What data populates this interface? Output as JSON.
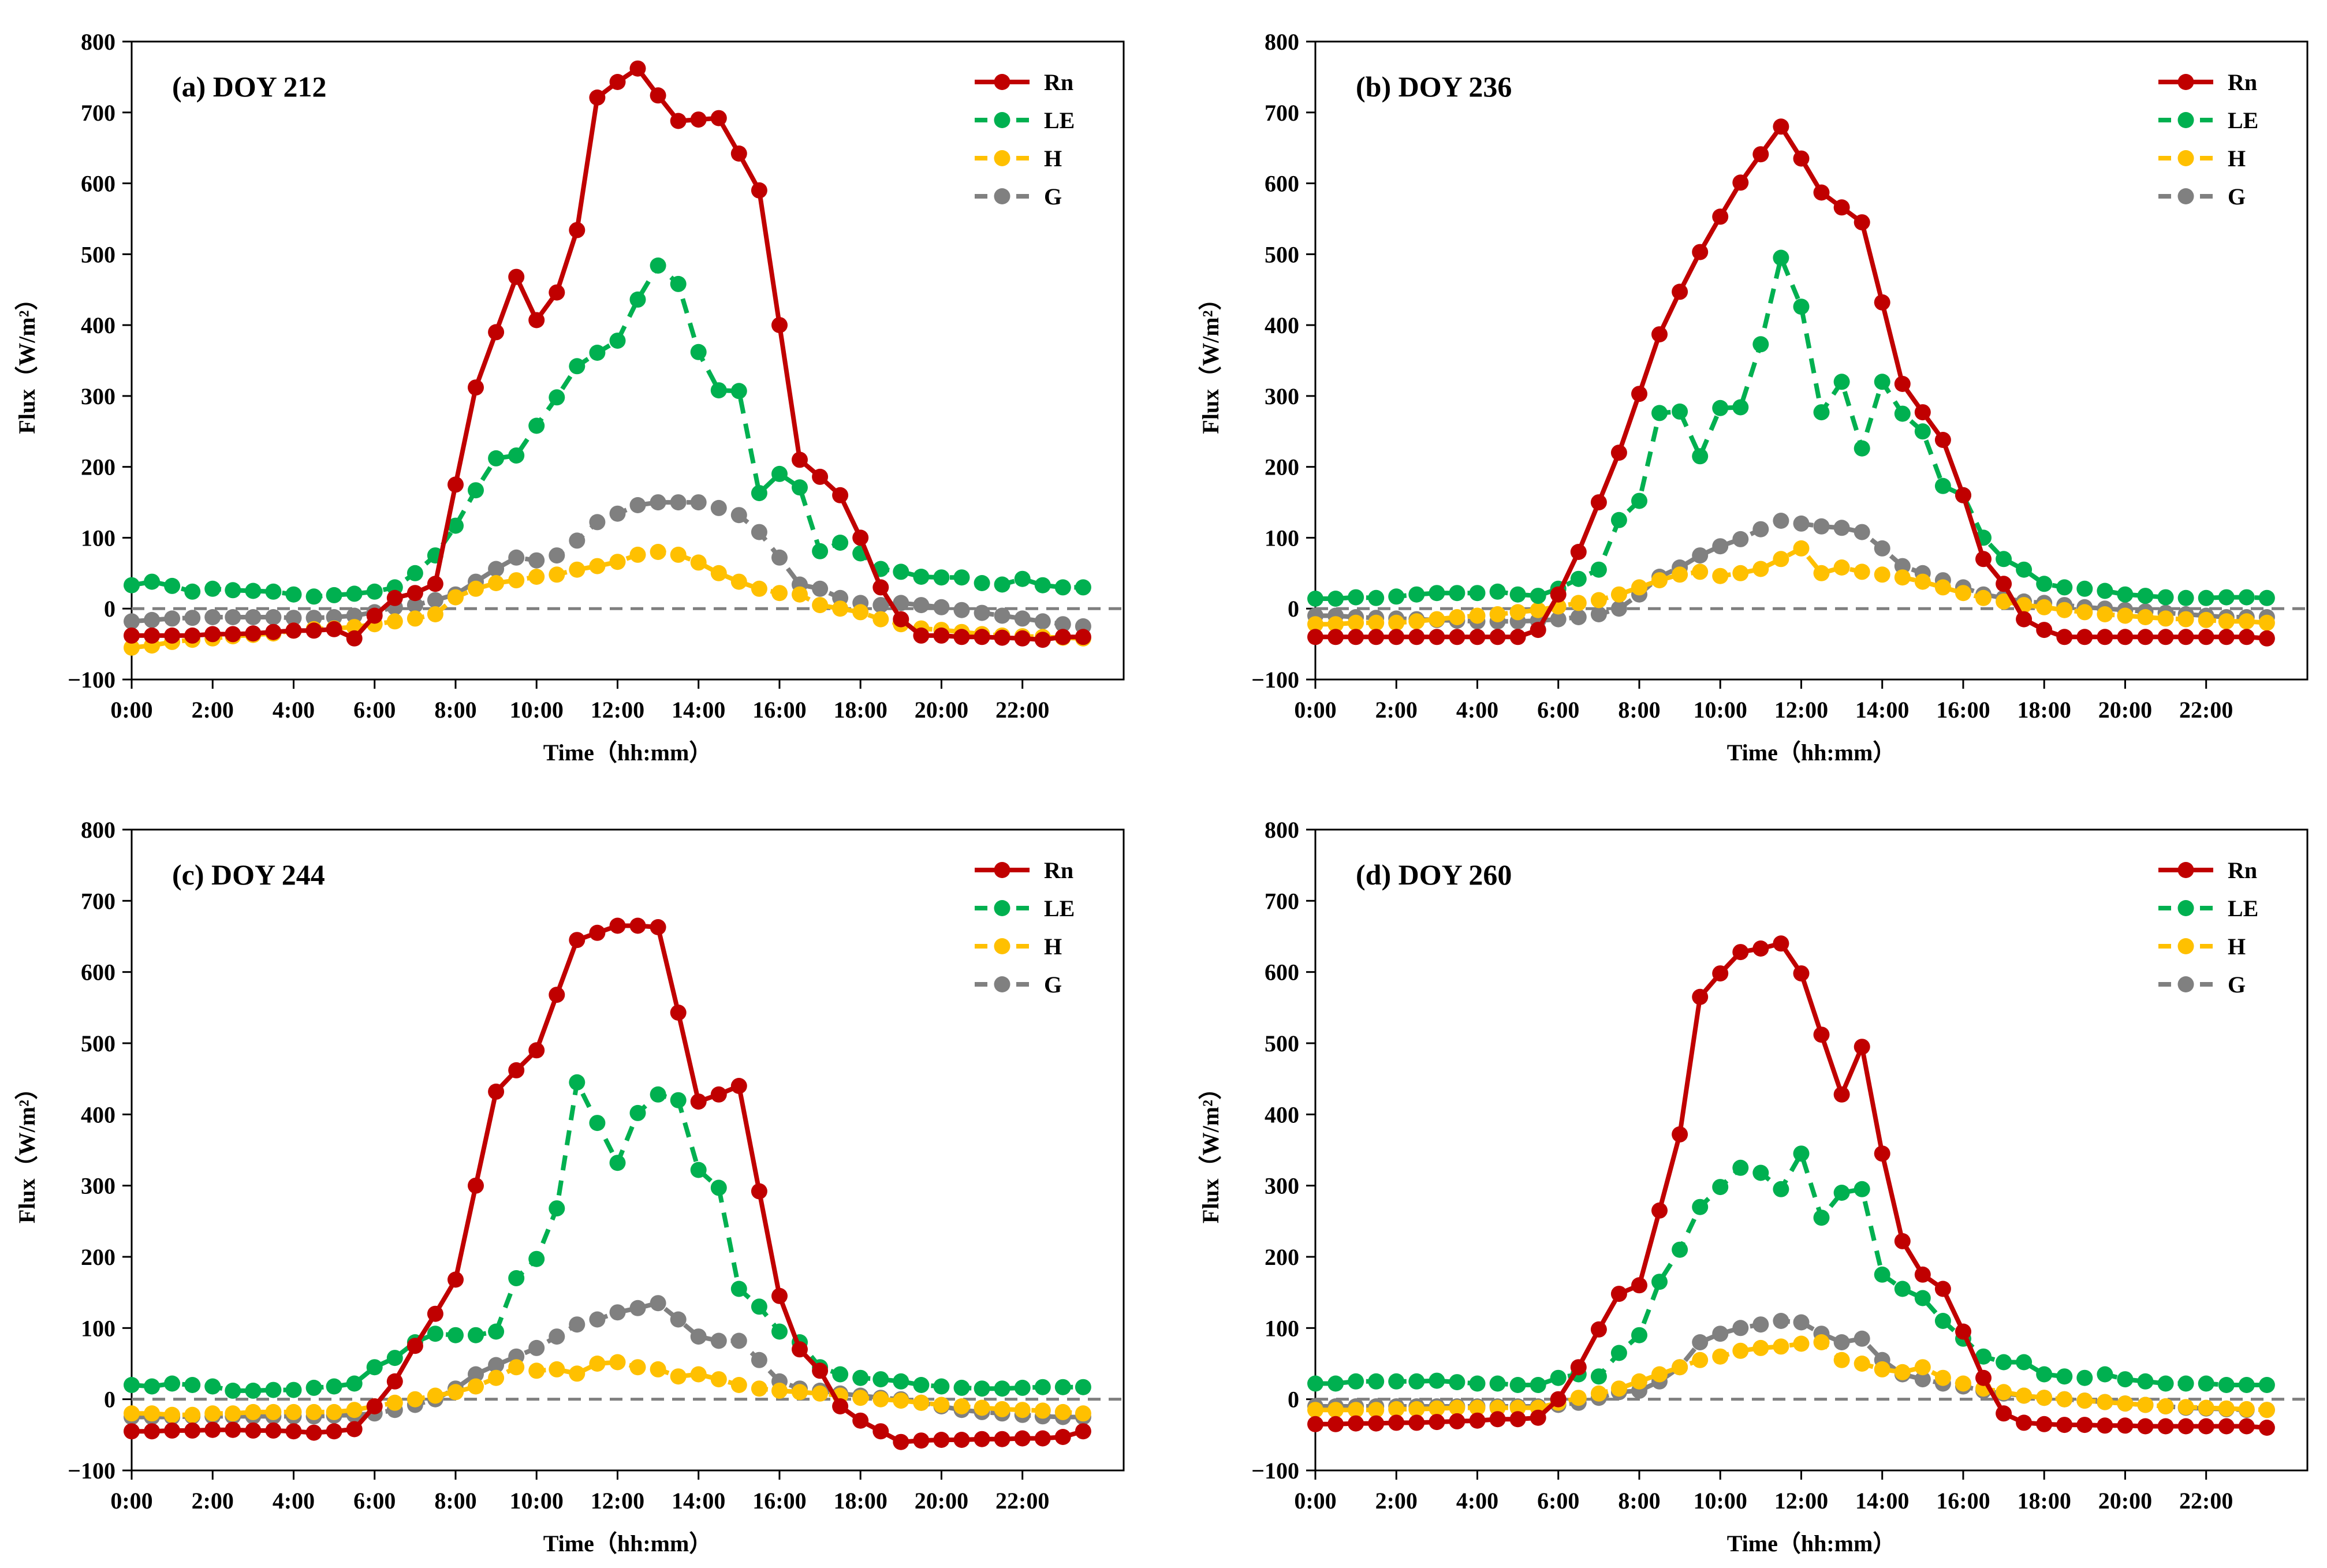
{
  "colors": {
    "Rn": "#c00000",
    "LE": "#00b050",
    "H": "#ffc000",
    "G": "#808080",
    "zero_line": "#7f7f7f",
    "axes": "#000000"
  },
  "chart_data": [
    {
      "type": "line",
      "title": "(a) DOY 212",
      "xlabel": "Time（hh:mm）",
      "ylabel": "Flux（W/m²）",
      "ylim": [
        -100,
        800
      ],
      "yticks": [
        "−100",
        "0",
        "100",
        "200",
        "300",
        "400",
        "500",
        "600",
        "700",
        "800"
      ],
      "xticks": [
        "0:00",
        "2:00",
        "4:00",
        "6:00",
        "8:00",
        "10:00",
        "12:00",
        "14:00",
        "16:00",
        "18:00",
        "20:00",
        "22:00"
      ],
      "x_hours": [
        0,
        0.5,
        1,
        1.5,
        2,
        2.5,
        3,
        3.5,
        4,
        4.5,
        5,
        5.5,
        6,
        6.5,
        7,
        7.5,
        8,
        8.5,
        9,
        9.5,
        10,
        10.5,
        11,
        11.5,
        12,
        12.5,
        13,
        13.5,
        14,
        14.5,
        15,
        15.5,
        16,
        16.5,
        17,
        17.5,
        18,
        18.5,
        19,
        19.5,
        20,
        20.5,
        21,
        21.5,
        22,
        22.5,
        23,
        23.5
      ],
      "legend": [
        "Rn",
        "LE",
        "H",
        "G"
      ],
      "series": [
        {
          "name": "Rn",
          "values": [
            -38,
            -38,
            -38,
            -38,
            -36,
            -36,
            -35,
            -33,
            -31,
            -31,
            -29,
            -42,
            -10,
            15,
            22,
            35,
            175,
            312,
            390,
            468,
            407,
            446,
            534,
            721,
            743,
            762,
            724,
            688,
            690,
            692,
            642,
            590,
            400,
            210,
            186,
            160,
            100,
            30,
            -15,
            -38,
            -38,
            -40,
            -40,
            -41,
            -42,
            -44,
            -40,
            -40
          ]
        },
        {
          "name": "LE",
          "values": [
            33,
            38,
            32,
            24,
            28,
            26,
            25,
            24,
            20,
            17,
            19,
            21,
            24,
            30,
            50,
            75,
            117,
            167,
            212,
            216,
            258,
            298,
            342,
            361,
            378,
            436,
            484,
            458,
            362,
            308,
            307,
            163,
            190,
            171,
            81,
            93,
            78,
            56,
            52,
            45,
            44,
            44,
            36,
            34,
            42,
            33,
            30,
            30
          ]
        },
        {
          "name": "H",
          "values": [
            -55,
            -52,
            -47,
            -44,
            -42,
            -39,
            -37,
            -35,
            -31,
            -29,
            -28,
            -26,
            -22,
            -18,
            -14,
            -8,
            16,
            28,
            36,
            40,
            45,
            48,
            55,
            60,
            66,
            76,
            80,
            76,
            65,
            50,
            38,
            28,
            22,
            20,
            5,
            0,
            -5,
            -15,
            -22,
            -28,
            -30,
            -33,
            -36,
            -38,
            -39,
            -40,
            -41,
            -42
          ]
        },
        {
          "name": "G",
          "values": [
            -18,
            -16,
            -14,
            -13,
            -12,
            -12,
            -12,
            -12,
            -13,
            -13,
            -12,
            -10,
            -5,
            2,
            5,
            12,
            20,
            38,
            56,
            72,
            68,
            75,
            96,
            122,
            134,
            146,
            150,
            150,
            150,
            142,
            132,
            108,
            72,
            34,
            28,
            15,
            8,
            5,
            8,
            5,
            2,
            -2,
            -6,
            -10,
            -14,
            -18,
            -22,
            -25
          ]
        }
      ]
    },
    {
      "type": "line",
      "title": "(b) DOY 236",
      "xlabel": "Time（hh:mm）",
      "ylabel": "Flux（W/m²）",
      "ylim": [
        -100,
        800
      ],
      "yticks": [
        "−100",
        "0",
        "100",
        "200",
        "300",
        "400",
        "500",
        "600",
        "700",
        "800"
      ],
      "xticks": [
        "0:00",
        "2:00",
        "4:00",
        "6:00",
        "8:00",
        "10:00",
        "12:00",
        "14:00",
        "16:00",
        "18:00",
        "20:00",
        "22:00"
      ],
      "x_hours": [
        0,
        0.5,
        1,
        1.5,
        2,
        2.5,
        3,
        3.5,
        4,
        4.5,
        5,
        5.5,
        6,
        6.5,
        7,
        7.5,
        8,
        8.5,
        9,
        9.5,
        10,
        10.5,
        11,
        11.5,
        12,
        12.5,
        13,
        13.5,
        14,
        14.5,
        15,
        15.5,
        16,
        16.5,
        17,
        17.5,
        18,
        18.5,
        19,
        19.5,
        20,
        20.5,
        21,
        21.5,
        22,
        22.5,
        23,
        23.5
      ],
      "legend": [
        "Rn",
        "LE",
        "H",
        "G"
      ],
      "series": [
        {
          "name": "Rn",
          "values": [
            -40,
            -40,
            -40,
            -40,
            -40,
            -40,
            -40,
            -40,
            -40,
            -40,
            -40,
            -30,
            20,
            80,
            150,
            220,
            303,
            387,
            447,
            503,
            553,
            601,
            641,
            680,
            635,
            587,
            566,
            545,
            432,
            317,
            277,
            238,
            160,
            70,
            35,
            -15,
            -30,
            -40,
            -40,
            -40,
            -40,
            -40,
            -40,
            -40,
            -40,
            -40,
            -40,
            -42
          ]
        },
        {
          "name": "LE",
          "values": [
            14,
            14,
            16,
            15,
            17,
            20,
            22,
            22,
            22,
            24,
            20,
            18,
            28,
            42,
            55,
            125,
            152,
            276,
            278,
            215,
            283,
            284,
            373,
            495,
            426,
            277,
            320,
            226,
            320,
            275,
            250,
            173,
            160,
            100,
            70,
            55,
            35,
            30,
            28,
            25,
            20,
            18,
            16,
            15,
            15,
            16,
            16,
            15
          ]
        },
        {
          "name": "H",
          "values": [
            -22,
            -22,
            -20,
            -20,
            -20,
            -18,
            -15,
            -12,
            -10,
            -8,
            -5,
            -2,
            3,
            8,
            12,
            20,
            30,
            40,
            48,
            52,
            46,
            50,
            56,
            70,
            85,
            50,
            58,
            52,
            48,
            44,
            38,
            30,
            22,
            15,
            10,
            5,
            2,
            -2,
            -5,
            -8,
            -10,
            -12,
            -14,
            -15,
            -16,
            -18,
            -18,
            -20
          ]
        },
        {
          "name": "G",
          "values": [
            -10,
            -10,
            -12,
            -13,
            -14,
            -15,
            -16,
            -17,
            -18,
            -18,
            -18,
            -17,
            -15,
            -12,
            -8,
            0,
            20,
            45,
            58,
            75,
            88,
            98,
            112,
            124,
            120,
            116,
            114,
            108,
            85,
            60,
            50,
            40,
            30,
            20,
            15,
            10,
            8,
            5,
            2,
            0,
            -2,
            -4,
            -6,
            -8,
            -10,
            -12,
            -12,
            -12
          ]
        }
      ]
    },
    {
      "type": "line",
      "title": "(c) DOY 244",
      "xlabel": "Time（hh:mm）",
      "ylabel": "Flux（W/m²）",
      "ylim": [
        -100,
        800
      ],
      "yticks": [
        "−100",
        "0",
        "100",
        "200",
        "300",
        "400",
        "500",
        "600",
        "700",
        "800"
      ],
      "xticks": [
        "0:00",
        "2:00",
        "4:00",
        "6:00",
        "8:00",
        "10:00",
        "12:00",
        "14:00",
        "16:00",
        "18:00",
        "20:00",
        "22:00"
      ],
      "x_hours": [
        0,
        0.5,
        1,
        1.5,
        2,
        2.5,
        3,
        3.5,
        4,
        4.5,
        5,
        5.5,
        6,
        6.5,
        7,
        7.5,
        8,
        8.5,
        9,
        9.5,
        10,
        10.5,
        11,
        11.5,
        12,
        12.5,
        13,
        13.5,
        14,
        14.5,
        15,
        15.5,
        16,
        16.5,
        17,
        17.5,
        18,
        18.5,
        19,
        19.5,
        20,
        20.5,
        21,
        21.5,
        22,
        22.5,
        23,
        23.5
      ],
      "legend": [
        "Rn",
        "LE",
        "H",
        "G"
      ],
      "series": [
        {
          "name": "Rn",
          "values": [
            -45,
            -45,
            -44,
            -44,
            -43,
            -43,
            -44,
            -44,
            -45,
            -47,
            -45,
            -42,
            -10,
            25,
            75,
            120,
            168,
            300,
            432,
            462,
            490,
            568,
            645,
            655,
            665,
            665,
            663,
            543,
            418,
            428,
            440,
            292,
            145,
            70,
            40,
            -10,
            -30,
            -45,
            -60,
            -58,
            -57,
            -57,
            -56,
            -56,
            -55,
            -55,
            -53,
            -45
          ]
        },
        {
          "name": "LE",
          "values": [
            20,
            18,
            22,
            20,
            18,
            12,
            12,
            13,
            13,
            16,
            18,
            22,
            45,
            58,
            80,
            92,
            90,
            90,
            95,
            170,
            197,
            268,
            445,
            388,
            332,
            402,
            428,
            420,
            322,
            297,
            155,
            130,
            95,
            80,
            45,
            35,
            30,
            28,
            25,
            20,
            18,
            16,
            15,
            15,
            16,
            17,
            17,
            17
          ]
        },
        {
          "name": "H",
          "values": [
            -20,
            -20,
            -22,
            -22,
            -20,
            -20,
            -18,
            -18,
            -18,
            -18,
            -18,
            -15,
            -10,
            -5,
            0,
            5,
            10,
            18,
            30,
            45,
            40,
            42,
            36,
            50,
            52,
            45,
            42,
            32,
            35,
            28,
            20,
            15,
            12,
            10,
            8,
            5,
            2,
            0,
            -2,
            -5,
            -8,
            -10,
            -12,
            -14,
            -15,
            -16,
            -18,
            -20
          ]
        },
        {
          "name": "G",
          "values": [
            -25,
            -25,
            -25,
            -24,
            -24,
            -24,
            -24,
            -24,
            -24,
            -24,
            -23,
            -22,
            -20,
            -15,
            -8,
            0,
            15,
            35,
            48,
            60,
            72,
            88,
            105,
            112,
            122,
            128,
            135,
            112,
            88,
            82,
            82,
            55,
            25,
            15,
            12,
            8,
            5,
            2,
            0,
            -5,
            -10,
            -15,
            -18,
            -20,
            -22,
            -24,
            -25,
            -25
          ]
        }
      ]
    },
    {
      "type": "line",
      "title": "(d) DOY 260",
      "xlabel": "Time（hh:mm）",
      "ylabel": "Flux（W/m²）",
      "ylim": [
        -100,
        800
      ],
      "yticks": [
        "−100",
        "0",
        "100",
        "200",
        "300",
        "400",
        "500",
        "600",
        "700",
        "800"
      ],
      "xticks": [
        "0:00",
        "2:00",
        "4:00",
        "6:00",
        "8:00",
        "10:00",
        "12:00",
        "14:00",
        "16:00",
        "18:00",
        "20:00",
        "22:00"
      ],
      "x_hours": [
        0,
        0.5,
        1,
        1.5,
        2,
        2.5,
        3,
        3.5,
        4,
        4.5,
        5,
        5.5,
        6,
        6.5,
        7,
        7.5,
        8,
        8.5,
        9,
        9.5,
        10,
        10.5,
        11,
        11.5,
        12,
        12.5,
        13,
        13.5,
        14,
        14.5,
        15,
        15.5,
        16,
        16.5,
        17,
        17.5,
        18,
        18.5,
        19,
        19.5,
        20,
        20.5,
        21,
        21.5,
        22,
        22.5,
        23,
        23.5
      ],
      "legend": [
        "Rn",
        "LE",
        "H",
        "G"
      ],
      "series": [
        {
          "name": "Rn",
          "values": [
            -35,
            -35,
            -34,
            -34,
            -33,
            -33,
            -32,
            -31,
            -30,
            -28,
            -28,
            -26,
            0,
            45,
            98,
            148,
            160,
            265,
            372,
            565,
            598,
            628,
            633,
            640,
            598,
            512,
            428,
            495,
            345,
            222,
            175,
            155,
            95,
            30,
            -20,
            -33,
            -35,
            -36,
            -36,
            -37,
            -37,
            -38,
            -38,
            -38,
            -38,
            -38,
            -38,
            -40
          ]
        },
        {
          "name": "LE",
          "values": [
            22,
            22,
            25,
            25,
            25,
            25,
            26,
            24,
            22,
            22,
            20,
            20,
            30,
            35,
            32,
            65,
            90,
            165,
            210,
            270,
            298,
            325,
            318,
            295,
            345,
            255,
            290,
            295,
            175,
            155,
            142,
            110,
            85,
            60,
            52,
            52,
            35,
            32,
            30,
            35,
            28,
            25,
            22,
            22,
            22,
            20,
            20,
            20
          ]
        },
        {
          "name": "H",
          "values": [
            -15,
            -15,
            -15,
            -15,
            -14,
            -14,
            -13,
            -12,
            -12,
            -12,
            -12,
            -12,
            -5,
            2,
            8,
            15,
            25,
            35,
            45,
            55,
            60,
            68,
            72,
            74,
            78,
            80,
            55,
            50,
            42,
            38,
            45,
            30,
            22,
            15,
            10,
            5,
            2,
            0,
            -2,
            -4,
            -6,
            -8,
            -10,
            -11,
            -12,
            -13,
            -14,
            -15
          ]
        },
        {
          "name": "G",
          "values": [
            -10,
            -10,
            -10,
            -10,
            -10,
            -10,
            -10,
            -10,
            -10,
            -10,
            -10,
            -10,
            -8,
            -5,
            2,
            10,
            12,
            25,
            45,
            80,
            92,
            100,
            105,
            110,
            108,
            92,
            80,
            85,
            55,
            35,
            28,
            22,
            18,
            12,
            8,
            5,
            2,
            0,
            -2,
            -4,
            -6,
            -8,
            -10,
            -12,
            -13,
            -14,
            -15,
            -15
          ]
        }
      ]
    }
  ]
}
